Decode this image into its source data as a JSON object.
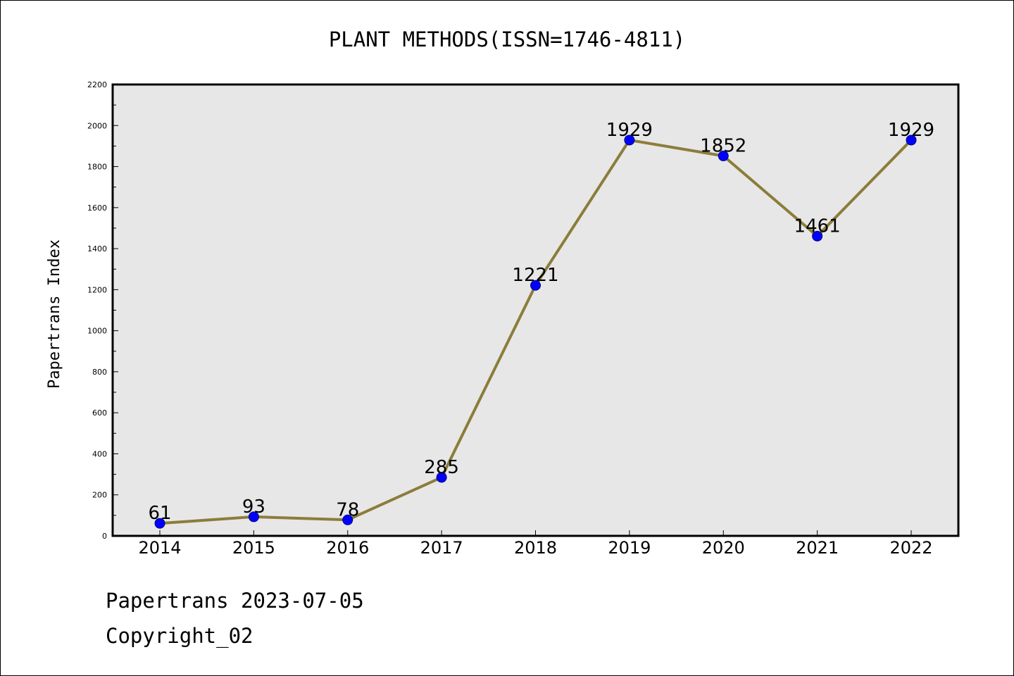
{
  "chart_data": {
    "type": "line",
    "title": "PLANT METHODS(ISSN=1746-4811)",
    "xlabel": "",
    "ylabel": "Papertrans Index",
    "categories": [
      "2014",
      "2015",
      "2016",
      "2017",
      "2018",
      "2019",
      "2020",
      "2021",
      "2022"
    ],
    "values": [
      61,
      93,
      78,
      285,
      1221,
      1929,
      1852,
      1461,
      1929
    ],
    "data_labels": [
      "61",
      "93",
      "78",
      "285",
      "1221",
      "1929",
      "1852",
      "1461",
      "1929"
    ],
    "ylim": [
      0,
      2200
    ],
    "yticks": [
      "0",
      "200",
      "400",
      "600",
      "800",
      "1000",
      "1200",
      "1400",
      "1600",
      "1800",
      "2000",
      "2200"
    ],
    "grid": false,
    "legend": "none"
  },
  "footer": {
    "line1": "Papertrans 2023-07-05",
    "line2": "Copyright_02"
  },
  "colors": {
    "plot_background": "#e7e7e7",
    "line": "#8b7d3a",
    "marker_fill": "#0000ff",
    "marker_edge": "#000080"
  }
}
